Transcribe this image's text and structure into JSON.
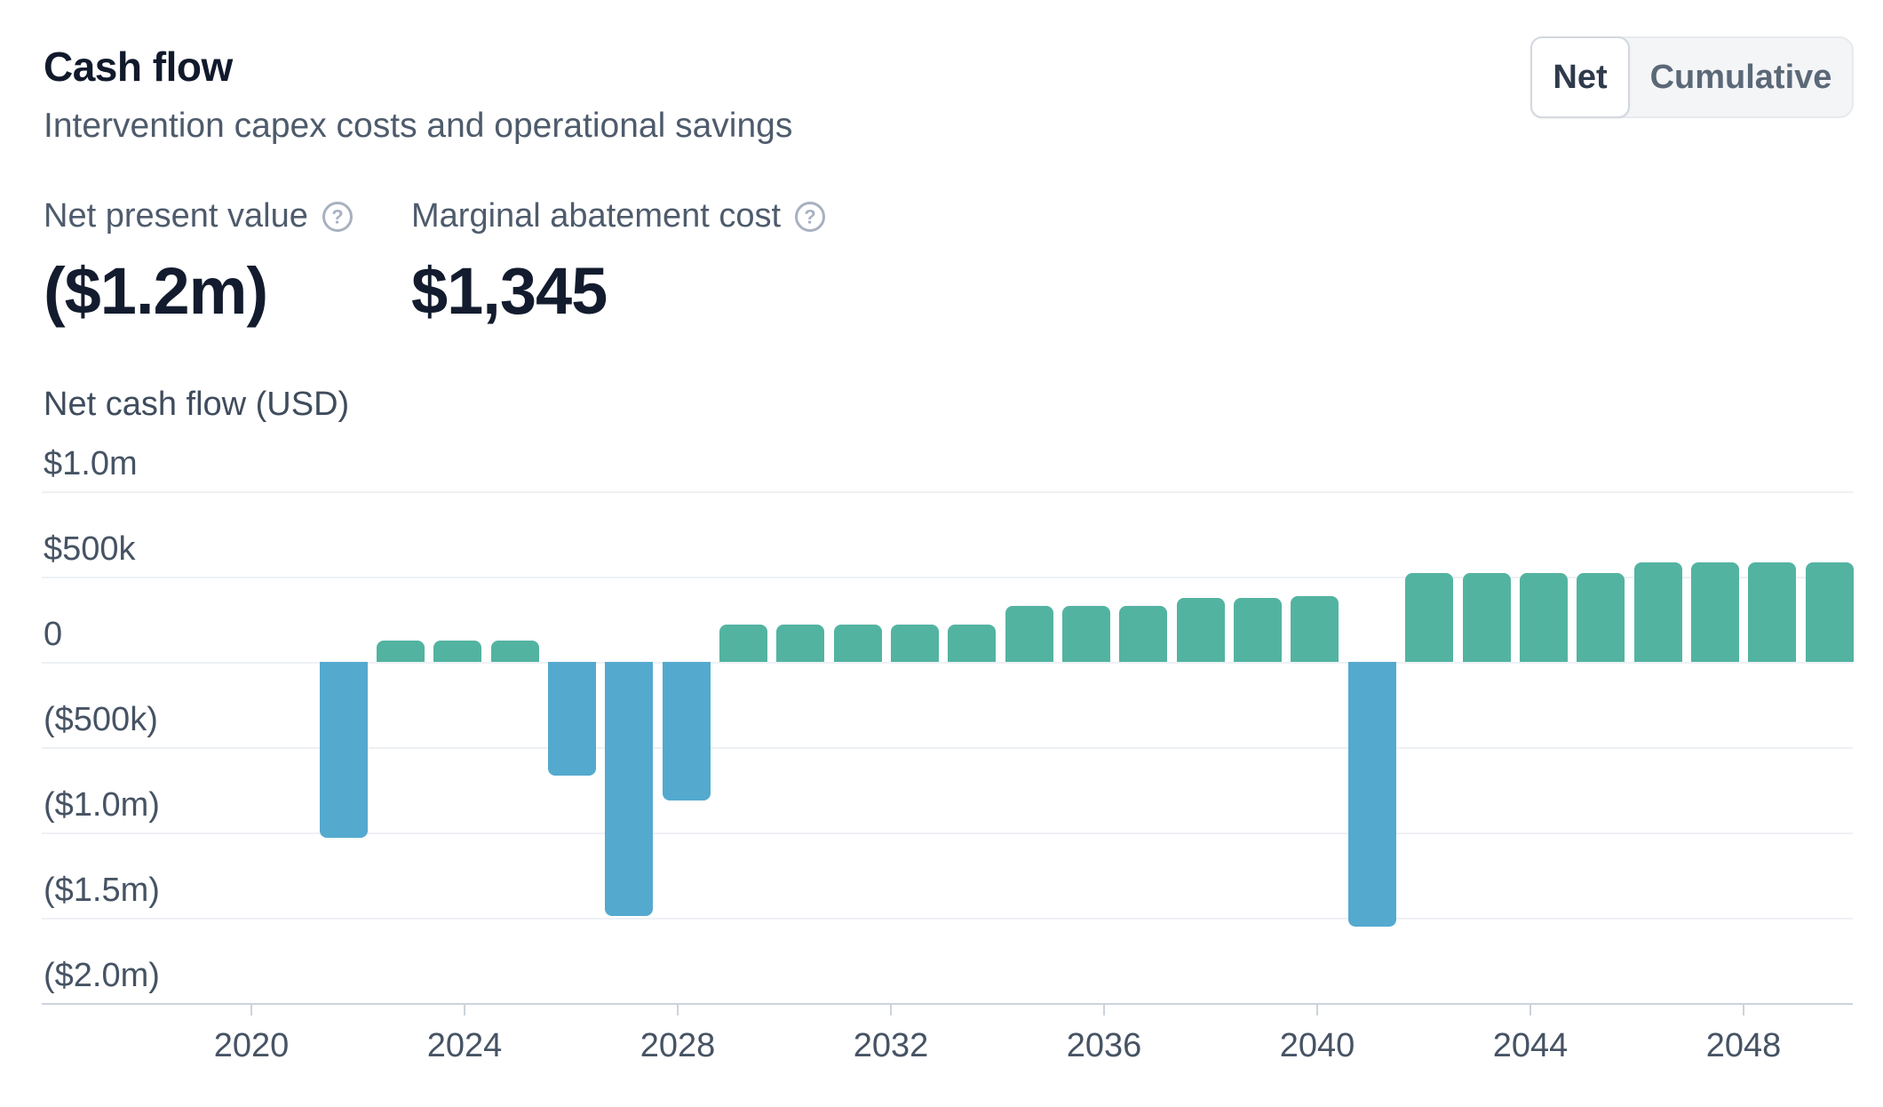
{
  "header": {
    "title": "Cash flow",
    "subtitle": "Intervention capex costs and operational savings"
  },
  "toggle": {
    "options": [
      "Net",
      "Cumulative"
    ],
    "selected": "Net"
  },
  "kpis": [
    {
      "label": "Net present value",
      "value": "($1.2m)",
      "icon": "question-circle"
    },
    {
      "label": "Marginal abatement cost",
      "value": "$1,345",
      "icon": "question-circle"
    }
  ],
  "chart_data": {
    "type": "bar",
    "title": "Net cash flow (USD)",
    "x": [
      2022,
      2023,
      2024,
      2025,
      2026,
      2027,
      2028,
      2029,
      2030,
      2031,
      2032,
      2033,
      2034,
      2035,
      2036,
      2037,
      2038,
      2039,
      2040,
      2041,
      2042,
      2043,
      2044,
      2045,
      2046,
      2047,
      2048
    ],
    "values": [
      -1030000,
      125000,
      125000,
      125000,
      -665000,
      -1490000,
      -815000,
      220000,
      220000,
      220000,
      220000,
      220000,
      330000,
      330000,
      330000,
      375000,
      375000,
      385000,
      -1550000,
      520000,
      520000,
      520000,
      520000,
      585000,
      585000,
      585000,
      585000
    ],
    "ylabel": "Net cash flow (USD)",
    "ylim": [
      -2000000,
      1000000
    ],
    "y_ticks": [
      {
        "value": 1000000,
        "label": "$1.0m"
      },
      {
        "value": 500000,
        "label": "$500k"
      },
      {
        "value": 0,
        "label": "0"
      },
      {
        "value": -500000,
        "label": "($500k)"
      },
      {
        "value": -1000000,
        "label": "($1.0m)"
      },
      {
        "value": -1500000,
        "label": "($1.5m)"
      },
      {
        "value": -2000000,
        "label": "($2.0m)"
      }
    ],
    "x_ticks": [
      {
        "value": 2020,
        "label": "2020"
      },
      {
        "value": 2024,
        "label": "2024"
      },
      {
        "value": 2028,
        "label": "2028"
      },
      {
        "value": 2032,
        "label": "2032"
      },
      {
        "value": 2036,
        "label": "2036"
      },
      {
        "value": 2040,
        "label": "2040"
      },
      {
        "value": 2044,
        "label": "2044"
      },
      {
        "value": 2048,
        "label": "2048"
      }
    ],
    "grid": "horizontal",
    "legend": "none",
    "positive_color": "#53b3a1",
    "negative_color": "#54a9cf"
  }
}
